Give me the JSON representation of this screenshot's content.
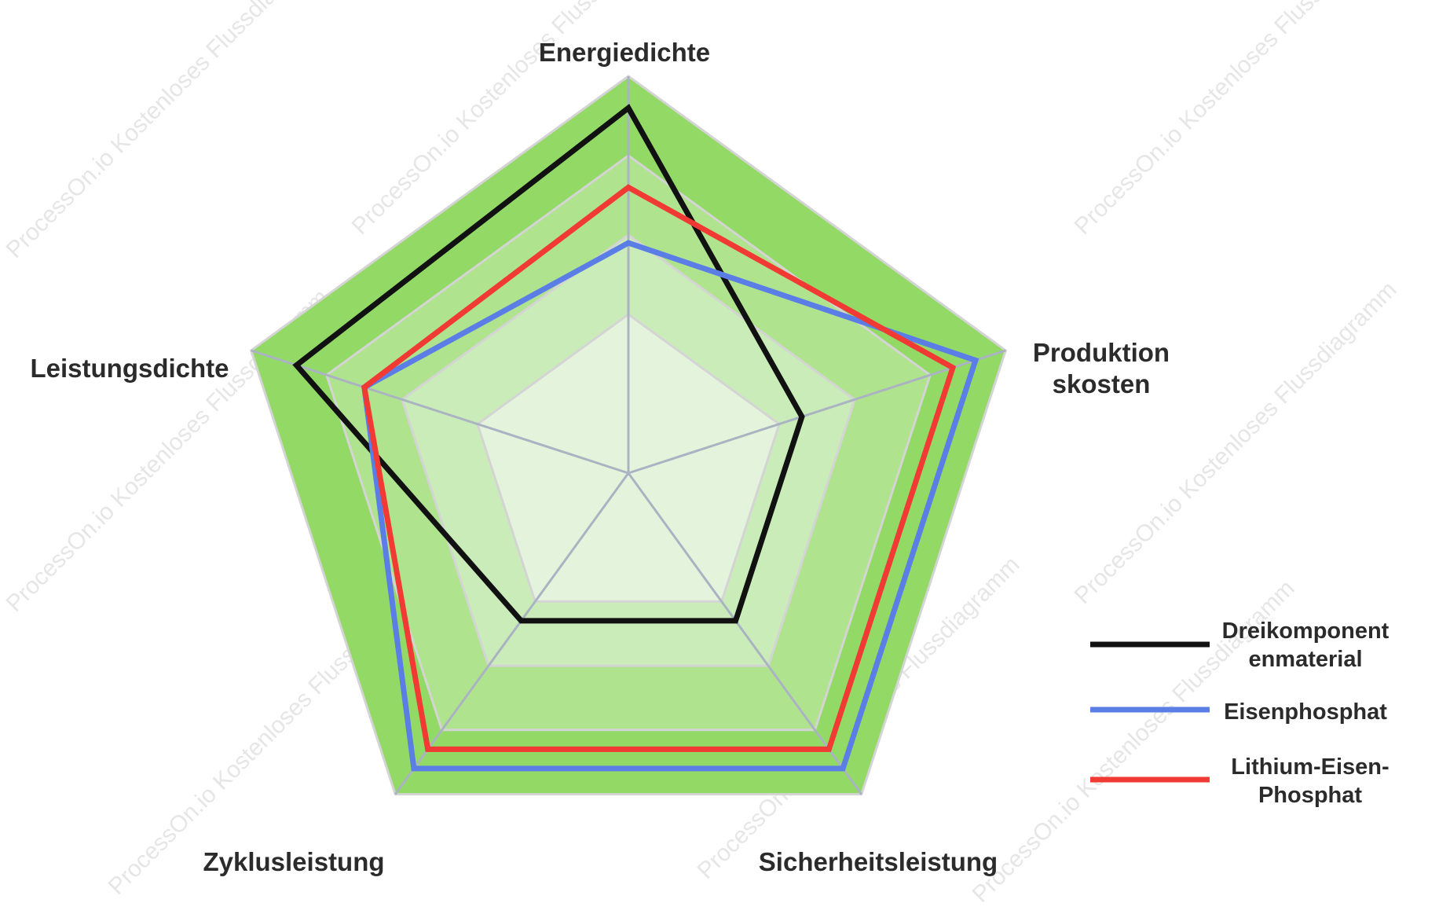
{
  "watermark": "ProcessOn.io Kostenloses Flussdiagramm",
  "colors": {
    "ring_fills": [
      "#e4f4dc",
      "#c9ecb8",
      "#b0e38e",
      "#92d966"
    ],
    "ring_stroke": "#d4d4d4",
    "spoke": "#aab3c2",
    "label_text": "#2b2b2b"
  },
  "chart_data": {
    "type": "radar",
    "axes": [
      {
        "lines": [
          "Energiedichte"
        ]
      },
      {
        "lines": [
          "Produktion",
          "skosten"
        ]
      },
      {
        "lines": [
          "Sicherheitsleistung"
        ]
      },
      {
        "lines": [
          "Zyklusleistung"
        ]
      },
      {
        "lines": [
          "Leistungsdichte"
        ]
      }
    ],
    "rmax": 5,
    "rings": [
      2,
      3,
      4,
      5
    ],
    "grid": true,
    "legend_position": "right",
    "series": [
      {
        "name_lines": [
          "Dreikomponent",
          "enmaterial"
        ],
        "color": "#111111",
        "values": [
          4.6,
          2.3,
          2.3,
          2.3,
          4.4
        ]
      },
      {
        "name_lines": [
          "Eisenphosphat"
        ],
        "color": "#5b7ee6",
        "values": [
          2.9,
          4.6,
          4.6,
          4.6,
          3.5
        ]
      },
      {
        "name_lines": [
          "Lithium-Eisen-",
          "Phosphat"
        ],
        "color": "#f03a33",
        "values": [
          3.6,
          4.3,
          4.3,
          4.3,
          3.5
        ]
      }
    ]
  }
}
